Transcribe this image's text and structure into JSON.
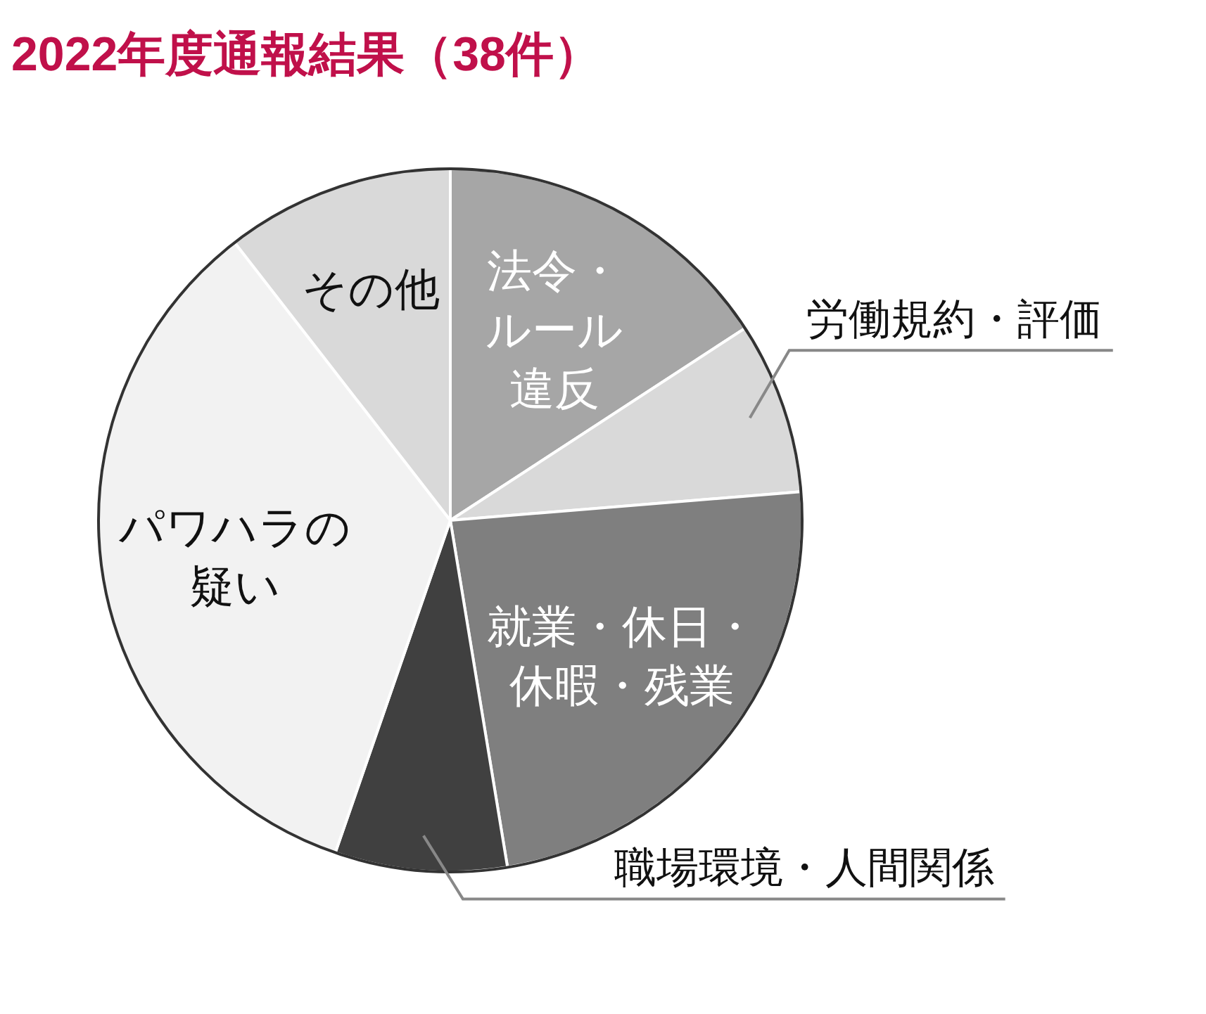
{
  "chart_data": {
    "type": "pie",
    "title": "2022年度通報結果（38件）",
    "categories": [
      "法令・ルール違反",
      "労働規約・評価",
      "就業・休日・休暇・残業",
      "職場環境・人間関係",
      "パワハラの疑い",
      "その他"
    ],
    "values": [
      15.8,
      7.9,
      23.7,
      7.9,
      34.2,
      10.5
    ],
    "colors": [
      "#a6a6a6",
      "#d9d9d9",
      "#7f7f7f",
      "#404040",
      "#f2f2f2",
      "#d9d9d9"
    ]
  }
}
